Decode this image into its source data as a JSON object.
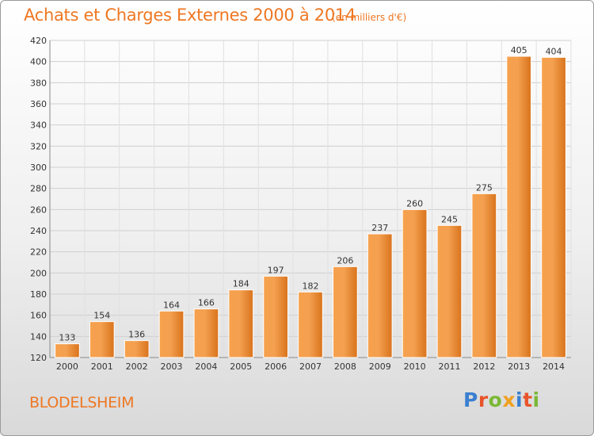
{
  "header": {
    "title": "Achats et Charges Externes 2000 à 2014",
    "unit": "(en milliers d'€)"
  },
  "footer": {
    "city": "BLODELSHEIM",
    "logo_text": "Proxiti",
    "logo_colors": [
      "#3a7fd0",
      "#e8542a",
      "#7ab834",
      "#f0a020",
      "#3a7fd0",
      "#e8542a",
      "#7ab834"
    ]
  },
  "chart_data": {
    "type": "bar",
    "title": "Achats et Charges Externes 2000 à 2014",
    "subtitle": "(en milliers d'€)",
    "categories": [
      "2000",
      "2001",
      "2002",
      "2003",
      "2004",
      "2005",
      "2006",
      "2007",
      "2008",
      "2009",
      "2010",
      "2011",
      "2012",
      "2013",
      "2014"
    ],
    "values": [
      133,
      154,
      136,
      164,
      166,
      184,
      197,
      182,
      206,
      237,
      260,
      245,
      275,
      405,
      404
    ],
    "ylim": [
      120,
      420
    ],
    "yticks": [
      120,
      140,
      160,
      180,
      200,
      220,
      240,
      260,
      280,
      300,
      320,
      340,
      360,
      380,
      400,
      420
    ],
    "grid": true,
    "bar_color": "#f0932e",
    "legend": "none"
  }
}
